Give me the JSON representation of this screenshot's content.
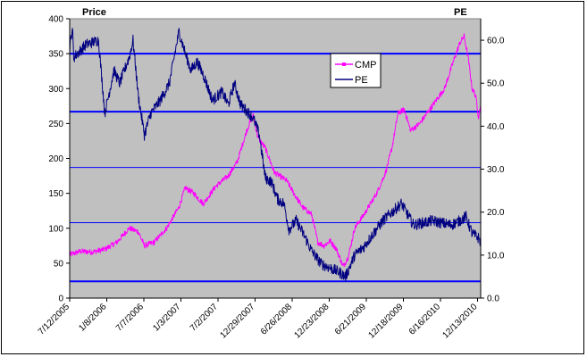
{
  "chart_data": {
    "type": "line",
    "title": "",
    "left_axis_title": "Price",
    "right_axis_title": "PE",
    "ylim_left": [
      0,
      400
    ],
    "ylim_right": [
      0,
      65
    ],
    "yticks_left": [
      "0",
      "50",
      "100",
      "150",
      "200",
      "250",
      "300",
      "350",
      "400"
    ],
    "yticks_right": [
      "0.0",
      "10.0",
      "20.0",
      "30.0",
      "40.0",
      "50.0",
      "60.0"
    ],
    "x_tick_labels": [
      "7/12/2005",
      "1/8/2006",
      "7/7/2006",
      "1/3/2007",
      "7/2/2007",
      "12/29/2007",
      "6/26/2008",
      "12/23/2008",
      "6/21/2009",
      "12/18/2009",
      "6/16/2010",
      "12/13/2010"
    ],
    "x_range": [
      "2005-07-12",
      "2011-01-26"
    ],
    "plot_background": "#c0c0c0",
    "grid": false,
    "legend_position": "top-right",
    "series": [
      {
        "name": "CMP",
        "axis": "left",
        "color": "#ff00ff",
        "points": [
          [
            "2005-07-12",
            62
          ],
          [
            "2005-09-01",
            67
          ],
          [
            "2005-11-01",
            66
          ],
          [
            "2006-01-01",
            70
          ],
          [
            "2006-03-01",
            80
          ],
          [
            "2006-05-01",
            100
          ],
          [
            "2006-06-15",
            95
          ],
          [
            "2006-07-15",
            75
          ],
          [
            "2006-09-01",
            80
          ],
          [
            "2006-11-01",
            100
          ],
          [
            "2007-01-01",
            130
          ],
          [
            "2007-02-01",
            158
          ],
          [
            "2007-03-15",
            150
          ],
          [
            "2007-05-01",
            135
          ],
          [
            "2007-07-01",
            160
          ],
          [
            "2007-09-01",
            175
          ],
          [
            "2007-10-15",
            195
          ],
          [
            "2007-12-01",
            240
          ],
          [
            "2008-01-01",
            262
          ],
          [
            "2008-01-25",
            230
          ],
          [
            "2008-03-01",
            215
          ],
          [
            "2008-04-15",
            180
          ],
          [
            "2008-06-15",
            168
          ],
          [
            "2008-07-20",
            150
          ],
          [
            "2008-09-01",
            130
          ],
          [
            "2008-10-15",
            120
          ],
          [
            "2008-11-15",
            80
          ],
          [
            "2008-12-15",
            75
          ],
          [
            "2009-01-15",
            82
          ],
          [
            "2009-02-15",
            70
          ],
          [
            "2009-03-20",
            45
          ],
          [
            "2009-04-15",
            60
          ],
          [
            "2009-05-15",
            100
          ],
          [
            "2009-07-01",
            120
          ],
          [
            "2009-09-01",
            150
          ],
          [
            "2009-10-15",
            180
          ],
          [
            "2009-11-15",
            215
          ],
          [
            "2009-12-15",
            265
          ],
          [
            "2010-01-15",
            270
          ],
          [
            "2010-02-15",
            240
          ],
          [
            "2010-04-01",
            250
          ],
          [
            "2010-06-01",
            275
          ],
          [
            "2010-08-01",
            300
          ],
          [
            "2010-09-15",
            340
          ],
          [
            "2010-10-15",
            365
          ],
          [
            "2010-11-05",
            375
          ],
          [
            "2010-11-25",
            345
          ],
          [
            "2010-12-15",
            300
          ],
          [
            "2011-01-01",
            290
          ],
          [
            "2011-01-15",
            260
          ],
          [
            "2011-01-26",
            275
          ]
        ]
      },
      {
        "name": "PE",
        "axis": "right",
        "color": "#000080",
        "points": [
          [
            "2005-07-12",
            58
          ],
          [
            "2005-07-25",
            63
          ],
          [
            "2005-08-01",
            56
          ],
          [
            "2005-10-01",
            59
          ],
          [
            "2005-12-01",
            60
          ],
          [
            "2006-01-01",
            43
          ],
          [
            "2006-02-15",
            53
          ],
          [
            "2006-03-15",
            50
          ],
          [
            "2006-05-01",
            56
          ],
          [
            "2006-05-20",
            60
          ],
          [
            "2006-06-15",
            47
          ],
          [
            "2006-07-15",
            38
          ],
          [
            "2006-08-15",
            43
          ],
          [
            "2006-10-01",
            46
          ],
          [
            "2006-11-15",
            50
          ],
          [
            "2007-01-01",
            62
          ],
          [
            "2007-02-01",
            57
          ],
          [
            "2007-03-01",
            53
          ],
          [
            "2007-04-01",
            55
          ],
          [
            "2007-05-01",
            52
          ],
          [
            "2007-06-15",
            46
          ],
          [
            "2007-08-01",
            48
          ],
          [
            "2007-09-01",
            45
          ],
          [
            "2007-10-01",
            50
          ],
          [
            "2007-11-01",
            45
          ],
          [
            "2008-01-01",
            42
          ],
          [
            "2008-02-01",
            38
          ],
          [
            "2008-03-01",
            28
          ],
          [
            "2008-04-01",
            27
          ],
          [
            "2008-05-01",
            23
          ],
          [
            "2008-06-01",
            22
          ],
          [
            "2008-06-26",
            16
          ],
          [
            "2008-08-01",
            18
          ],
          [
            "2008-09-15",
            14
          ],
          [
            "2008-10-15",
            11
          ],
          [
            "2008-12-01",
            8
          ],
          [
            "2009-01-15",
            7
          ],
          [
            "2009-03-01",
            6
          ],
          [
            "2009-04-01",
            5
          ],
          [
            "2009-05-15",
            10
          ],
          [
            "2009-07-01",
            12
          ],
          [
            "2009-08-15",
            15
          ],
          [
            "2009-10-01",
            18
          ],
          [
            "2009-11-15",
            20
          ],
          [
            "2010-01-01",
            22
          ],
          [
            "2010-03-01",
            17
          ],
          [
            "2010-06-01",
            18
          ],
          [
            "2010-09-01",
            17
          ],
          [
            "2010-10-15",
            18
          ],
          [
            "2010-11-15",
            19
          ],
          [
            "2010-12-15",
            15
          ],
          [
            "2011-01-15",
            14
          ],
          [
            "2011-01-26",
            13
          ]
        ]
      }
    ],
    "reference_lines": [
      {
        "axis": "left",
        "value": 350,
        "color": "#0000ff"
      },
      {
        "axis": "left",
        "value": 267,
        "color": "#0000ff"
      },
      {
        "axis": "left",
        "value": 187,
        "color": "#0000ff"
      },
      {
        "axis": "left",
        "value": 108,
        "color": "#0000ff"
      },
      {
        "axis": "left",
        "value": 24,
        "color": "#0000ff"
      }
    ]
  }
}
